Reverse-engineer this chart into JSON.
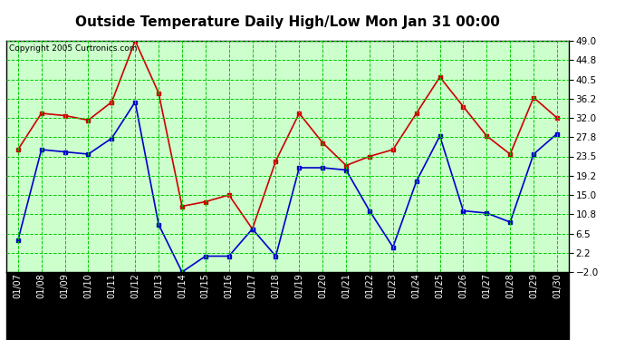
{
  "title": "Outside Temperature Daily High/Low Mon Jan 31 00:00",
  "copyright": "Copyright 2005 Curtronics.com",
  "x_labels": [
    "01/07",
    "01/08",
    "01/09",
    "01/10",
    "01/11",
    "01/12",
    "01/13",
    "01/14",
    "01/15",
    "01/16",
    "01/17",
    "01/18",
    "01/19",
    "01/20",
    "01/21",
    "01/22",
    "01/23",
    "01/24",
    "01/25",
    "01/26",
    "01/27",
    "01/28",
    "01/29",
    "01/30"
  ],
  "high_values": [
    25.0,
    33.0,
    32.5,
    31.5,
    35.5,
    49.0,
    37.5,
    12.5,
    13.5,
    15.0,
    7.5,
    22.5,
    33.0,
    26.5,
    21.5,
    23.5,
    25.0,
    33.0,
    41.0,
    34.5,
    28.0,
    24.0,
    36.5,
    32.0
  ],
  "low_values": [
    5.0,
    25.0,
    24.5,
    24.0,
    27.5,
    35.5,
    8.5,
    -2.0,
    1.5,
    1.5,
    7.5,
    1.5,
    21.0,
    21.0,
    20.5,
    11.5,
    3.5,
    18.0,
    28.0,
    11.5,
    11.0,
    9.0,
    24.0,
    28.5
  ],
  "high_color": "#cc0000",
  "low_color": "#0000cc",
  "plot_bg_color": "#ccffcc",
  "title_fontsize": 11,
  "ylim": [
    -2.0,
    49.0
  ],
  "yticks": [
    -2.0,
    2.2,
    6.5,
    10.8,
    15.0,
    19.2,
    23.5,
    27.8,
    32.0,
    36.2,
    40.5,
    44.8,
    49.0
  ],
  "grid_color": "#00cc00",
  "outer_bg": "#ffffff",
  "border_color": "#000000"
}
